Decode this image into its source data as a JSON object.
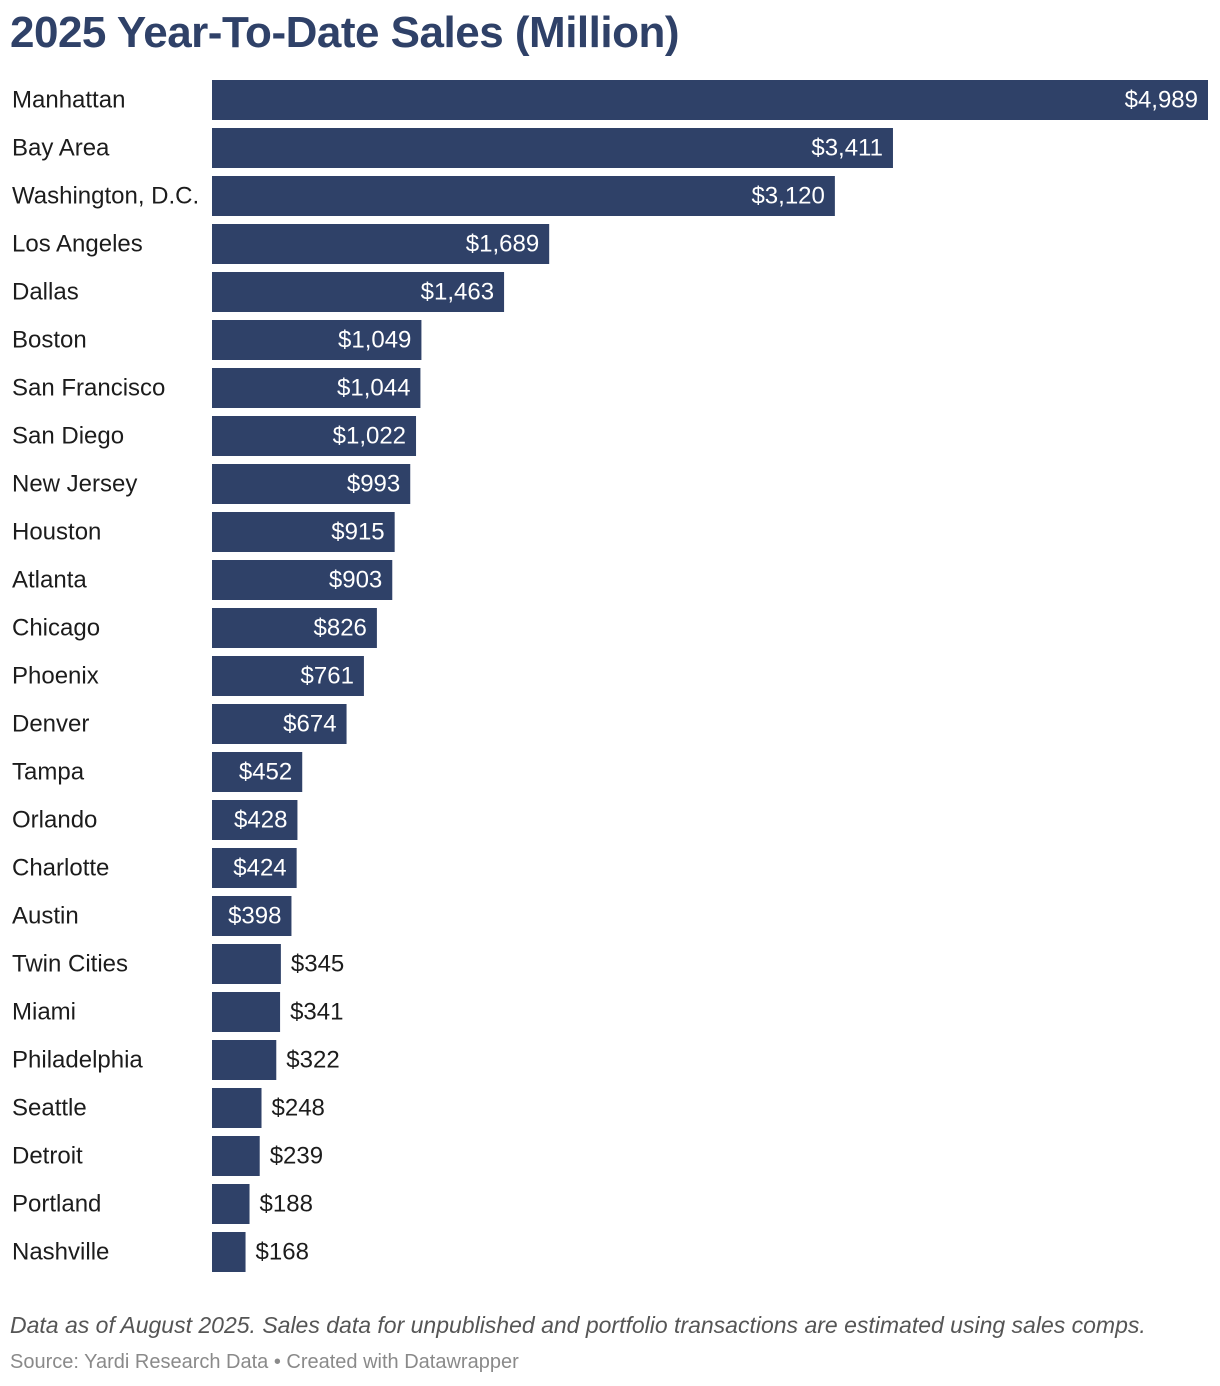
{
  "chart_data": {
    "type": "bar",
    "orientation": "horizontal",
    "title": "2025 Year-To-Date Sales (Million)",
    "xlabel": "",
    "ylabel": "",
    "value_prefix": "$",
    "bar_color": "#2f4168",
    "label_inside_color": "#ffffff",
    "label_outside_color": "#1c1c1c",
    "categories": [
      "Manhattan",
      "Bay Area",
      "Washington, D.C.",
      "Los Angeles",
      "Dallas",
      "Boston",
      "San Francisco",
      "San Diego",
      "New Jersey",
      "Houston",
      "Atlanta",
      "Chicago",
      "Phoenix",
      "Denver",
      "Tampa",
      "Orlando",
      "Charlotte",
      "Austin",
      "Twin Cities",
      "Miami",
      "Philadelphia",
      "Seattle",
      "Detroit",
      "Portland",
      "Nashville"
    ],
    "values": [
      4989,
      3411,
      3120,
      1689,
      1463,
      1049,
      1044,
      1022,
      993,
      915,
      903,
      826,
      761,
      674,
      452,
      428,
      424,
      398,
      345,
      341,
      322,
      248,
      239,
      188,
      168
    ],
    "value_labels": [
      "$4,989",
      "$3,411",
      "$3,120",
      "$1,689",
      "$1,463",
      "$1,049",
      "$1,044",
      "$1,022",
      "$993",
      "$915",
      "$903",
      "$826",
      "$761",
      "$674",
      "$452",
      "$428",
      "$424",
      "$398",
      "$345",
      "$341",
      "$322",
      "$248",
      "$239",
      "$188",
      "$168"
    ],
    "xlim": [
      0,
      4989
    ],
    "grid": false,
    "notes": "Data as of August 2025. Sales data for unpublished and portfolio transactions are estimated using sales comps.",
    "source": "Source: Yardi Research Data • Created with Datawrapper"
  }
}
